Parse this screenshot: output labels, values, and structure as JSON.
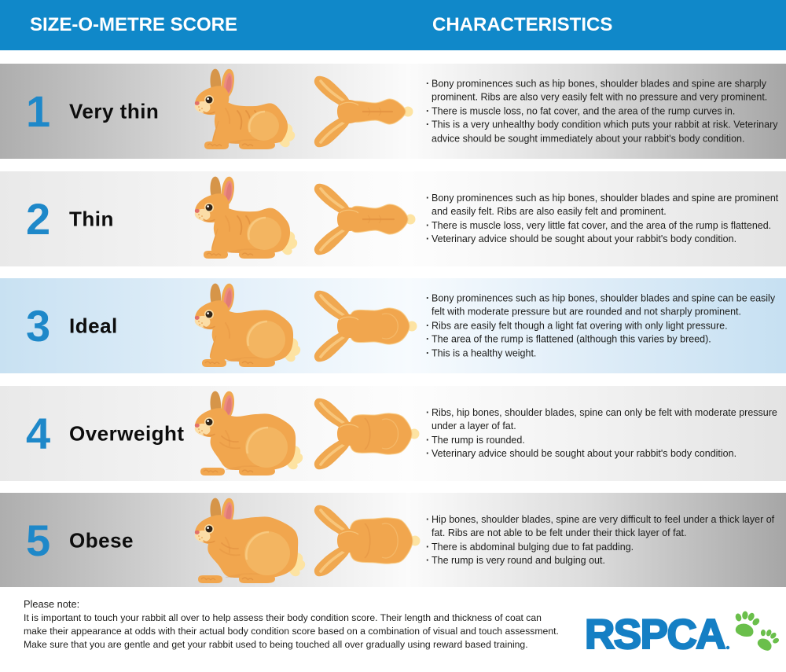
{
  "header": {
    "left_title": "SIZE-O-METRE SCORE",
    "right_title": "CHARACTERISTICS",
    "background_color": "#1088c9",
    "text_color": "#ffffff"
  },
  "rows": [
    {
      "score": "1",
      "label": "Very thin",
      "theme": "dark",
      "bullets": [
        "Bony prominences such as hip bones, shoulder blades and spine are sharply prominent. Ribs are also very easily felt with no pressure and very prominent.",
        "There is muscle loss, no fat cover, and the area of the rump curves in.",
        "This is a very unhealthy body condition which puts your rabbit at risk. Veterinary advice should be sought immediately about your rabbit's body condition."
      ]
    },
    {
      "score": "2",
      "label": "Thin",
      "theme": "light",
      "bullets": [
        "Bony prominences such as hip bones, shoulder blades and spine are prominent and easily felt. Ribs are also easily felt and prominent.",
        "There is muscle loss, very little fat cover, and the area of the rump is flattened.",
        "Veterinary advice should be sought about your rabbit's body condition."
      ]
    },
    {
      "score": "3",
      "label": "Ideal",
      "theme": "blue",
      "bullets": [
        "Bony prominences such as hip bones, shoulder blades and spine can be easily felt with moderate pressure but are rounded and not sharply prominent.",
        "Ribs are easily felt though a light fat overing with only light pressure.",
        "The area of the rump is flattened (although this varies by breed).",
        "This is a healthy weight."
      ]
    },
    {
      "score": "4",
      "label": "Overweight",
      "theme": "light",
      "bullets": [
        "Ribs, hip bones, shoulder blades, spine can only be felt with moderate pressure under a layer of fat.",
        "The rump is rounded.",
        "Veterinary advice should be sought about your rabbit's body condition."
      ]
    },
    {
      "score": "5",
      "label": "Obese",
      "theme": "dark",
      "bullets": [
        "Hip bones, shoulder blades, spine are very difficult to feel under a thick layer of fat. Ribs are not able to be felt under their thick layer of fat.",
        "There is abdominal bulging due to fat padding.",
        "The rump is very round and bulging out."
      ]
    }
  ],
  "footer": {
    "note_title": "Please note:",
    "note_body": "It is important to touch your rabbit all over to help assess their body condition score. Their length and thickness of coat can make their appearance at odds with their actual body condition score based on a combination of visual and touch assessment. Make sure that you are gentle and get your rabbit used to being touched all over gradually using reward based training.",
    "logo_text": "RSPCA"
  },
  "colors": {
    "score_number": "#1e88c9",
    "logo_blue": "#157fc4",
    "logo_green": "#6abf4b",
    "rabbit_orange": "#f1a64e",
    "row_dark_edge": "#aeaeae",
    "row_light_edge": "#e9e9e9",
    "row_blue_edge": "#c8e1f2"
  }
}
